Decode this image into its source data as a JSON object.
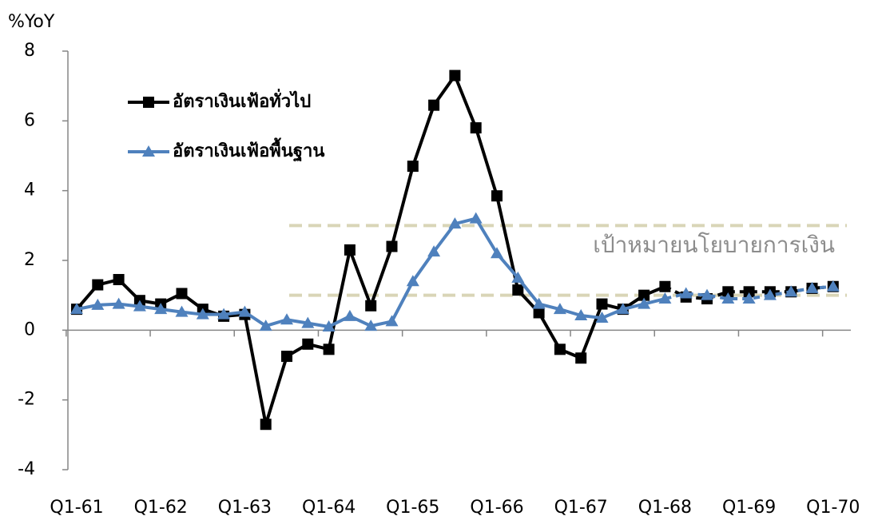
{
  "chart_data": {
    "type": "line",
    "y_label": "%YoY",
    "categories": [
      "Q1-61",
      null,
      null,
      null,
      "Q1-62",
      null,
      null,
      null,
      "Q1-63",
      null,
      null,
      null,
      "Q1-64",
      null,
      null,
      null,
      "Q1-65",
      null,
      null,
      null,
      "Q1-66",
      null,
      null,
      null,
      "Q1-67",
      null,
      null,
      null,
      "Q1-68",
      null,
      null,
      null,
      "Q1-69",
      null,
      null,
      null,
      "Q1-70"
    ],
    "series": [
      {
        "name": "อัตราเงินเฟ้อทั่วไป",
        "color": "#000000",
        "marker": "square",
        "values": [
          0.6,
          1.3,
          1.45,
          0.85,
          0.75,
          1.05,
          0.6,
          0.4,
          0.45,
          -2.7,
          -0.75,
          -0.4,
          -0.55,
          2.3,
          0.7,
          2.4,
          4.7,
          6.45,
          7.3,
          5.8,
          3.85,
          1.15,
          0.5,
          -0.55,
          -0.8,
          0.75,
          0.6,
          1.0,
          1.25,
          0.95,
          0.9,
          1.1,
          1.1,
          1.1,
          1.1,
          1.2,
          1.25
        ]
      },
      {
        "name": "อัตราเงินเฟ้อพื้นฐาน",
        "color": "#4f81bd",
        "marker": "triangle",
        "values": [
          0.6,
          0.72,
          0.75,
          0.68,
          0.6,
          0.52,
          0.45,
          0.45,
          0.52,
          0.12,
          0.3,
          0.2,
          0.1,
          0.4,
          0.12,
          0.25,
          1.4,
          2.25,
          3.05,
          3.2,
          2.2,
          1.5,
          0.75,
          0.6,
          0.42,
          0.35,
          0.6,
          0.75,
          0.9,
          1.05,
          1.0,
          0.9,
          0.9,
          1.0,
          1.1,
          1.2,
          1.25
        ]
      }
    ],
    "target_band": [
      1,
      3
    ],
    "target_label": "เป้าหมายนโยบายการเงิน",
    "ylim": [
      -4,
      8
    ],
    "yticks": [
      -4,
      -2,
      0,
      2,
      4,
      6,
      8
    ]
  }
}
